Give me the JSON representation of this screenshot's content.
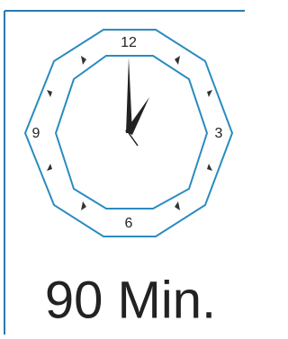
{
  "clock": {
    "labels": {
      "twelve": "12",
      "three": "3",
      "six": "6",
      "nine": "9"
    }
  },
  "caption": "90 Min."
}
